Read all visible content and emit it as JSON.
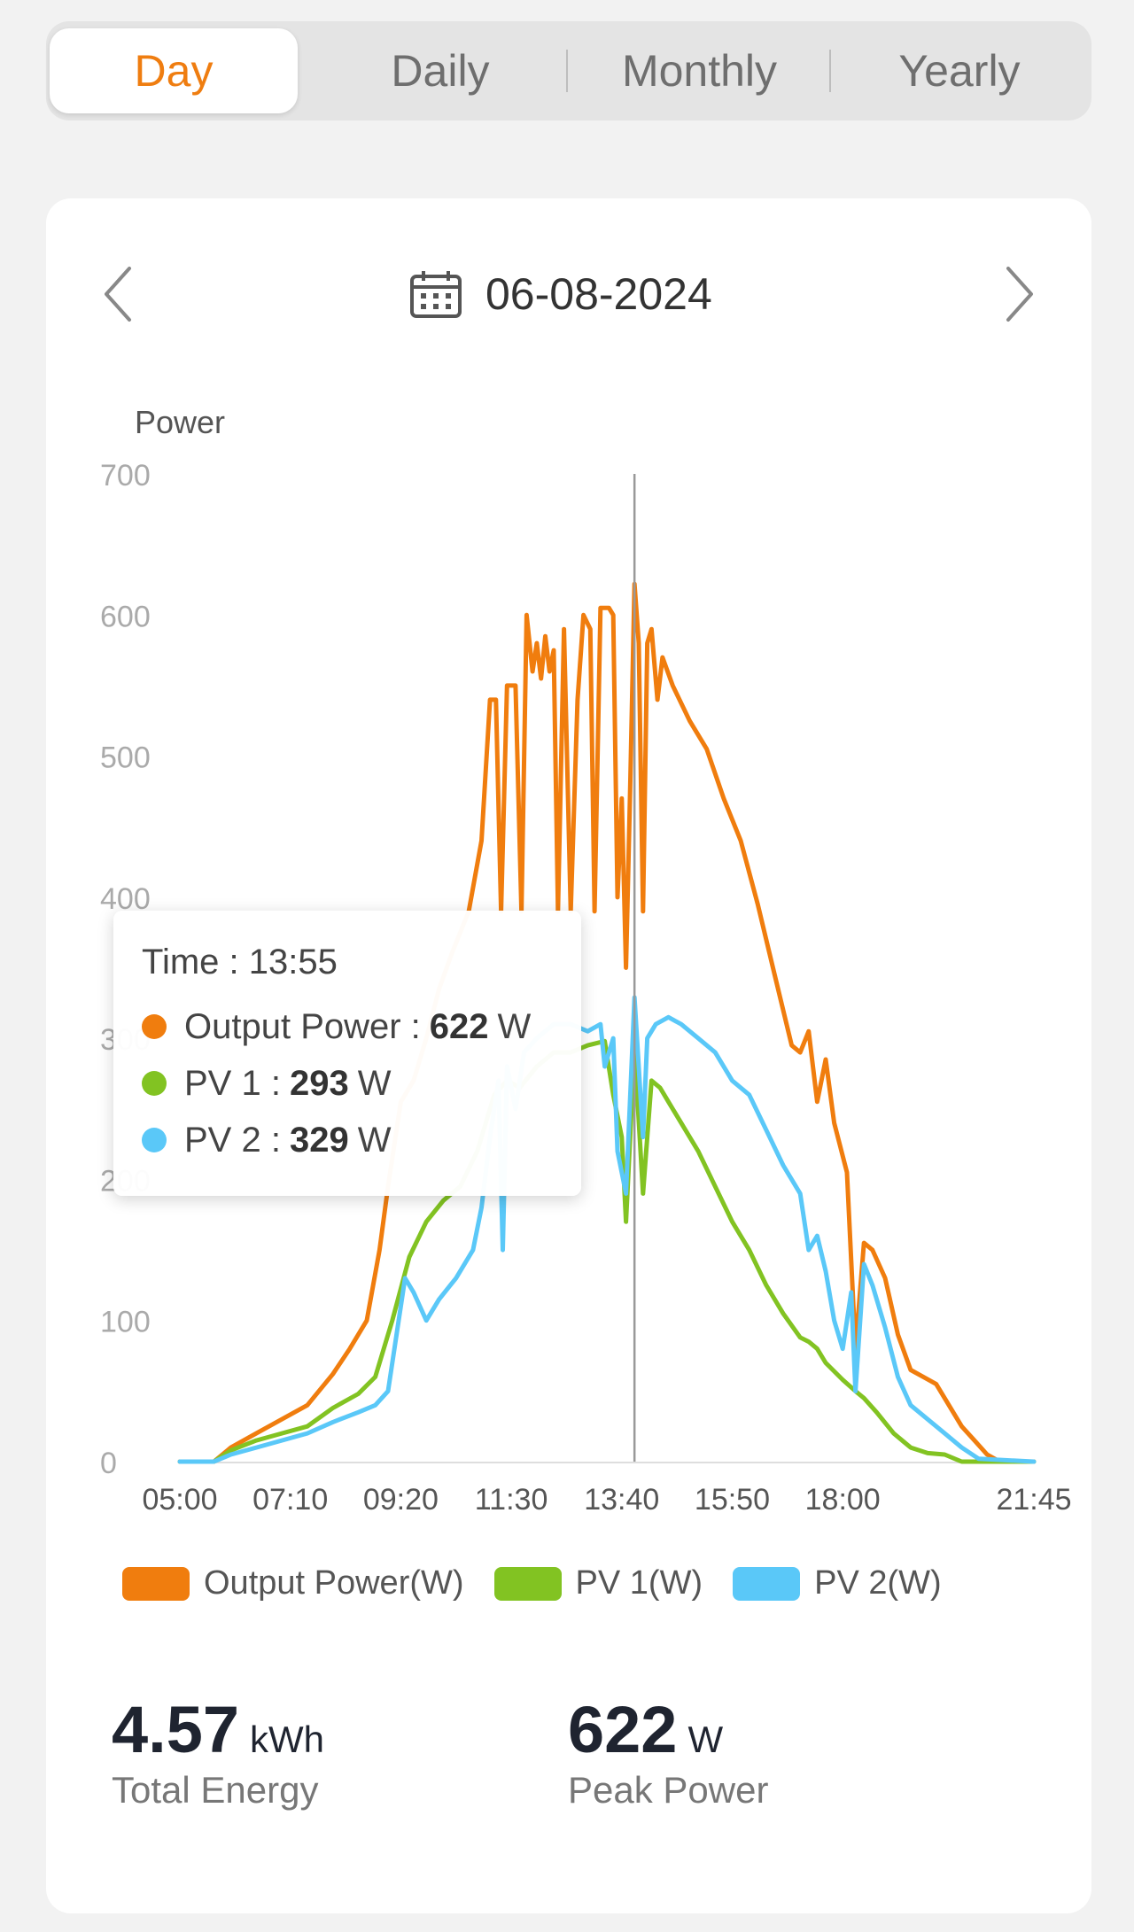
{
  "tabs": [
    {
      "label": "Day",
      "active": true
    },
    {
      "label": "Daily",
      "active": false
    },
    {
      "label": "Monthly",
      "active": false
    },
    {
      "label": "Yearly",
      "active": false
    }
  ],
  "date": "06-08-2024",
  "colors": {
    "output": "#f07d0e",
    "pv1": "#82c322",
    "pv2": "#5ac8f8",
    "accent": "#ef7d10"
  },
  "icons": {
    "prev": "chevron-left-icon",
    "next": "chevron-right-icon",
    "calendar": "calendar-icon"
  },
  "tooltip": {
    "time_label": "Time : 13:55",
    "rows": [
      {
        "label": "Output Power :",
        "value": "622",
        "unit": "W"
      },
      {
        "label": "PV 1 :",
        "value": "293",
        "unit": "W"
      },
      {
        "label": "PV 2 :",
        "value": "329",
        "unit": "W"
      }
    ]
  },
  "legend": [
    "Output Power(W)",
    "PV 1(W)",
    "PV 2(W)"
  ],
  "stats": {
    "energy": {
      "value": "4.57",
      "unit": "kWh",
      "label": "Total Energy"
    },
    "peak": {
      "value": "622",
      "unit": "W",
      "label": "Peak Power"
    }
  },
  "chart_data": {
    "type": "line",
    "ylabel": "Power",
    "ylim": [
      0,
      700
    ],
    "yticks": [
      0,
      100,
      200,
      300,
      400,
      500,
      600,
      700
    ],
    "xlim": [
      "05:00",
      "21:45"
    ],
    "xticks": [
      "05:00",
      "07:10",
      "09:20",
      "11:30",
      "13:40",
      "15:50",
      "18:00",
      "21:45"
    ],
    "crosshair": "13:55",
    "grid": false,
    "legend_position": "bottom",
    "series": [
      {
        "name": "Output Power(W)",
        "color": "#f07d0e",
        "points": [
          [
            "05:00",
            0
          ],
          [
            "05:40",
            0
          ],
          [
            "06:00",
            10
          ],
          [
            "06:30",
            20
          ],
          [
            "07:00",
            30
          ],
          [
            "07:30",
            40
          ],
          [
            "08:00",
            62
          ],
          [
            "08:20",
            80
          ],
          [
            "08:40",
            100
          ],
          [
            "08:55",
            150
          ],
          [
            "09:05",
            195
          ],
          [
            "09:20",
            255
          ],
          [
            "09:35",
            270
          ],
          [
            "09:50",
            300
          ],
          [
            "10:05",
            335
          ],
          [
            "10:20",
            360
          ],
          [
            "10:40",
            390
          ],
          [
            "10:55",
            440
          ],
          [
            "11:05",
            540
          ],
          [
            "11:12",
            540
          ],
          [
            "11:18",
            390
          ],
          [
            "11:25",
            550
          ],
          [
            "11:35",
            550
          ],
          [
            "11:42",
            390
          ],
          [
            "11:48",
            600
          ],
          [
            "11:55",
            560
          ],
          [
            "12:00",
            580
          ],
          [
            "12:05",
            555
          ],
          [
            "12:10",
            585
          ],
          [
            "12:15",
            560
          ],
          [
            "12:20",
            575
          ],
          [
            "12:25",
            390
          ],
          [
            "12:32",
            590
          ],
          [
            "12:40",
            390
          ],
          [
            "12:48",
            540
          ],
          [
            "12:55",
            600
          ],
          [
            "13:03",
            590
          ],
          [
            "13:08",
            390
          ],
          [
            "13:15",
            605
          ],
          [
            "13:25",
            605
          ],
          [
            "13:30",
            600
          ],
          [
            "13:35",
            400
          ],
          [
            "13:40",
            470
          ],
          [
            "13:45",
            350
          ],
          [
            "13:50",
            480
          ],
          [
            "13:55",
            622
          ],
          [
            "14:00",
            580
          ],
          [
            "14:05",
            390
          ],
          [
            "14:10",
            580
          ],
          [
            "14:15",
            590
          ],
          [
            "14:22",
            540
          ],
          [
            "14:28",
            570
          ],
          [
            "14:40",
            550
          ],
          [
            "15:00",
            525
          ],
          [
            "15:20",
            505
          ],
          [
            "15:40",
            470
          ],
          [
            "16:00",
            440
          ],
          [
            "16:20",
            395
          ],
          [
            "16:40",
            345
          ],
          [
            "17:00",
            295
          ],
          [
            "17:10",
            290
          ],
          [
            "17:20",
            305
          ],
          [
            "17:30",
            255
          ],
          [
            "17:40",
            285
          ],
          [
            "17:50",
            240
          ],
          [
            "18:05",
            205
          ],
          [
            "18:15",
            80
          ],
          [
            "18:25",
            155
          ],
          [
            "18:35",
            150
          ],
          [
            "18:50",
            130
          ],
          [
            "19:05",
            90
          ],
          [
            "19:20",
            65
          ],
          [
            "19:35",
            60
          ],
          [
            "19:50",
            55
          ],
          [
            "20:05",
            40
          ],
          [
            "20:20",
            25
          ],
          [
            "20:35",
            15
          ],
          [
            "20:50",
            5
          ],
          [
            "21:05",
            0
          ],
          [
            "21:45",
            0
          ]
        ]
      },
      {
        "name": "PV 1(W)",
        "color": "#82c322",
        "points": [
          [
            "05:00",
            0
          ],
          [
            "05:40",
            0
          ],
          [
            "06:00",
            8
          ],
          [
            "06:30",
            15
          ],
          [
            "07:00",
            20
          ],
          [
            "07:30",
            25
          ],
          [
            "08:00",
            38
          ],
          [
            "08:30",
            48
          ],
          [
            "08:50",
            60
          ],
          [
            "09:10",
            100
          ],
          [
            "09:30",
            145
          ],
          [
            "09:50",
            170
          ],
          [
            "10:10",
            185
          ],
          [
            "10:30",
            195
          ],
          [
            "10:50",
            220
          ],
          [
            "11:10",
            260
          ],
          [
            "11:25",
            270
          ],
          [
            "11:40",
            265
          ],
          [
            "12:00",
            280
          ],
          [
            "12:20",
            290
          ],
          [
            "12:40",
            290
          ],
          [
            "13:00",
            295
          ],
          [
            "13:20",
            298
          ],
          [
            "13:30",
            260
          ],
          [
            "13:40",
            230
          ],
          [
            "13:45",
            170
          ],
          [
            "13:55",
            293
          ],
          [
            "14:05",
            190
          ],
          [
            "14:15",
            270
          ],
          [
            "14:25",
            265
          ],
          [
            "14:35",
            255
          ],
          [
            "14:50",
            240
          ],
          [
            "15:10",
            220
          ],
          [
            "15:30",
            195
          ],
          [
            "15:50",
            170
          ],
          [
            "16:10",
            150
          ],
          [
            "16:30",
            125
          ],
          [
            "16:50",
            105
          ],
          [
            "17:10",
            88
          ],
          [
            "17:20",
            85
          ],
          [
            "17:30",
            80
          ],
          [
            "17:40",
            70
          ],
          [
            "18:00",
            58
          ],
          [
            "18:15",
            50
          ],
          [
            "18:25",
            45
          ],
          [
            "18:40",
            35
          ],
          [
            "19:00",
            20
          ],
          [
            "19:20",
            10
          ],
          [
            "19:40",
            6
          ],
          [
            "20:00",
            5
          ],
          [
            "20:20",
            0
          ],
          [
            "21:45",
            0
          ]
        ]
      },
      {
        "name": "PV 2(W)",
        "color": "#5ac8f8",
        "points": [
          [
            "05:00",
            0
          ],
          [
            "05:40",
            0
          ],
          [
            "06:00",
            5
          ],
          [
            "06:30",
            10
          ],
          [
            "07:00",
            15
          ],
          [
            "07:30",
            20
          ],
          [
            "08:00",
            28
          ],
          [
            "08:30",
            35
          ],
          [
            "08:50",
            40
          ],
          [
            "09:05",
            50
          ],
          [
            "09:15",
            90
          ],
          [
            "09:25",
            130
          ],
          [
            "09:35",
            120
          ],
          [
            "09:50",
            100
          ],
          [
            "10:05",
            115
          ],
          [
            "10:25",
            130
          ],
          [
            "10:45",
            150
          ],
          [
            "10:55",
            180
          ],
          [
            "11:05",
            230
          ],
          [
            "11:15",
            270
          ],
          [
            "11:20",
            150
          ],
          [
            "11:25",
            280
          ],
          [
            "11:35",
            250
          ],
          [
            "11:45",
            290
          ],
          [
            "12:00",
            300
          ],
          [
            "12:20",
            310
          ],
          [
            "12:40",
            310
          ],
          [
            "13:00",
            305
          ],
          [
            "13:15",
            310
          ],
          [
            "13:20",
            280
          ],
          [
            "13:30",
            300
          ],
          [
            "13:35",
            220
          ],
          [
            "13:45",
            190
          ],
          [
            "13:55",
            329
          ],
          [
            "14:05",
            230
          ],
          [
            "14:10",
            300
          ],
          [
            "14:20",
            310
          ],
          [
            "14:35",
            315
          ],
          [
            "14:50",
            310
          ],
          [
            "15:10",
            300
          ],
          [
            "15:30",
            290
          ],
          [
            "15:50",
            270
          ],
          [
            "16:10",
            260
          ],
          [
            "16:30",
            235
          ],
          [
            "16:50",
            210
          ],
          [
            "17:10",
            190
          ],
          [
            "17:20",
            150
          ],
          [
            "17:30",
            160
          ],
          [
            "17:40",
            135
          ],
          [
            "17:50",
            100
          ],
          [
            "18:00",
            80
          ],
          [
            "18:10",
            120
          ],
          [
            "18:15",
            50
          ],
          [
            "18:25",
            140
          ],
          [
            "18:35",
            125
          ],
          [
            "18:50",
            95
          ],
          [
            "19:05",
            60
          ],
          [
            "19:20",
            40
          ],
          [
            "19:40",
            30
          ],
          [
            "20:00",
            20
          ],
          [
            "20:20",
            10
          ],
          [
            "20:40",
            2
          ],
          [
            "21:45",
            0
          ]
        ]
      }
    ]
  }
}
